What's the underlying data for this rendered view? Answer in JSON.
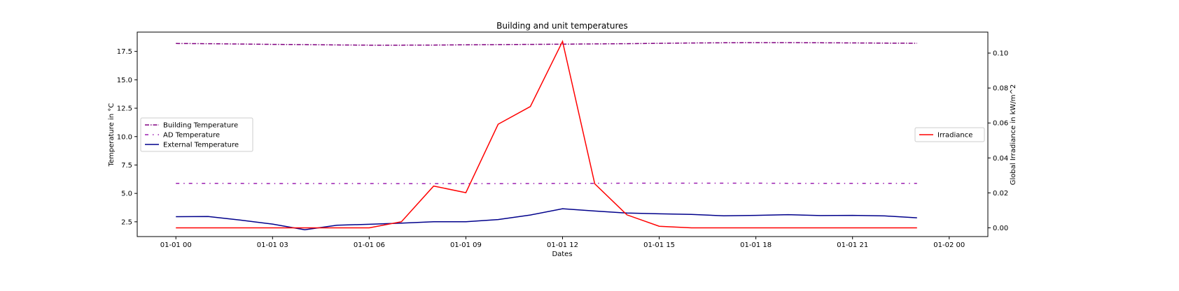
{
  "chart_data": {
    "type": "line",
    "title": "Building and unit temperatures",
    "xlabel": "Dates",
    "ylabel": "Temperature in °C",
    "y2label": "Global Irradiance in kW/m^2",
    "x_dates": [
      "01-01 00",
      "01-01 01",
      "01-01 02",
      "01-01 03",
      "01-01 04",
      "01-01 05",
      "01-01 06",
      "01-01 07",
      "01-01 08",
      "01-01 09",
      "01-01 10",
      "01-01 11",
      "01-01 12",
      "01-01 13",
      "01-01 14",
      "01-01 15",
      "01-01 16",
      "01-01 17",
      "01-01 18",
      "01-01 19",
      "01-01 20",
      "01-01 21",
      "01-01 22",
      "01-01 23"
    ],
    "x_ticks": [
      "01-01 00",
      "01-01 03",
      "01-01 06",
      "01-01 09",
      "01-01 12",
      "01-01 15",
      "01-01 18",
      "01-01 21",
      "01-02 00"
    ],
    "xlim": [
      "01-01 00",
      "01-02 00"
    ],
    "y_ticks": [
      "2.5",
      "5.0",
      "7.5",
      "10.0",
      "12.5",
      "15.0",
      "17.5"
    ],
    "ylim": [
      1.2,
      19.2
    ],
    "y2_ticks": [
      "0.00",
      "0.02",
      "0.04",
      "0.06",
      "0.08",
      "0.10"
    ],
    "y2lim": [
      -0.005,
      0.112
    ],
    "grid": false,
    "legend_left_position": "center-left",
    "legend_right_position": "center-right",
    "series": [
      {
        "name": "Building Temperature",
        "axis": "left",
        "color": "#800080",
        "style": "dashdot",
        "values": [
          18.2,
          18.18,
          18.15,
          18.12,
          18.1,
          18.07,
          18.05,
          18.05,
          18.06,
          18.08,
          18.1,
          18.12,
          18.14,
          18.16,
          18.18,
          18.21,
          18.24,
          18.26,
          18.27,
          18.27,
          18.26,
          18.25,
          18.23,
          18.22
        ]
      },
      {
        "name": "AD Temperature",
        "axis": "left",
        "color": "#9b1fb0",
        "style": "dashdot-sparse",
        "values": [
          5.88,
          5.88,
          5.88,
          5.87,
          5.87,
          5.87,
          5.87,
          5.86,
          5.86,
          5.86,
          5.86,
          5.87,
          5.88,
          5.89,
          5.9,
          5.9,
          5.9,
          5.9,
          5.9,
          5.89,
          5.89,
          5.89,
          5.89,
          5.88
        ]
      },
      {
        "name": "External Temperature",
        "axis": "left",
        "color": "#00008b",
        "style": "solid",
        "values": [
          2.95,
          2.97,
          2.65,
          2.3,
          1.8,
          2.2,
          2.28,
          2.38,
          2.5,
          2.5,
          2.7,
          3.1,
          3.65,
          3.45,
          3.27,
          3.2,
          3.15,
          3.03,
          3.07,
          3.13,
          3.05,
          3.07,
          3.02,
          2.85
        ]
      },
      {
        "name": "Irradiance",
        "axis": "right",
        "color": "#ff0000",
        "style": "solid",
        "values": [
          0,
          0,
          0,
          0,
          0,
          0,
          0,
          0.0035,
          0.0239,
          0.0201,
          0.0593,
          0.0694,
          0.1067,
          0.0252,
          0.0074,
          0.0009,
          0,
          0,
          0,
          0,
          0,
          0,
          0,
          0
        ]
      }
    ]
  }
}
